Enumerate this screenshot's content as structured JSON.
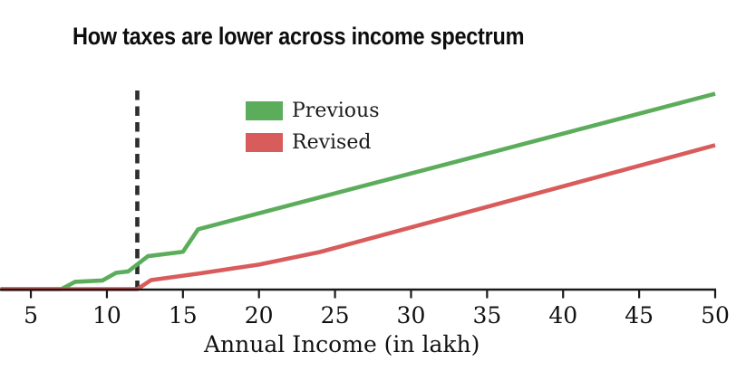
{
  "chart_data": {
    "type": "line",
    "title": "How taxes are lower across income spectrum",
    "xlabel": "Annual Income (in lakh)",
    "ylabel": "",
    "x_ticks": [
      5,
      10,
      15,
      20,
      25,
      30,
      35,
      40,
      45,
      50
    ],
    "xlim": [
      3,
      50
    ],
    "ylim": [
      0,
      105
    ],
    "y_axis_shown": false,
    "y_units": "relative tax level (no y-axis labels shown in chart)",
    "grid": false,
    "legend_position": "upper-left-of-center",
    "axis_color": "#1a1a1a",
    "reference_line": {
      "x": 12,
      "style": "dashed",
      "color": "#2e2e2e"
    },
    "series": [
      {
        "name": "Previous",
        "color": "#5BAD5B",
        "points": [
          [
            3,
            0
          ],
          [
            7,
            0
          ],
          [
            7.9,
            3.7
          ],
          [
            9.7,
            4.4
          ],
          [
            10.6,
            8.3
          ],
          [
            11.4,
            9.0
          ],
          [
            12.7,
            16.8
          ],
          [
            15,
            19.0
          ],
          [
            16,
            30.5
          ],
          [
            50,
            99.5
          ]
        ]
      },
      {
        "name": "Revised",
        "color": "#D95C5C",
        "points": [
          [
            3,
            0
          ],
          [
            12,
            0
          ],
          [
            12.9,
            4.6
          ],
          [
            16,
            7.9
          ],
          [
            20,
            12.5
          ],
          [
            24,
            18.9
          ],
          [
            50,
            73.3
          ]
        ]
      }
    ]
  }
}
